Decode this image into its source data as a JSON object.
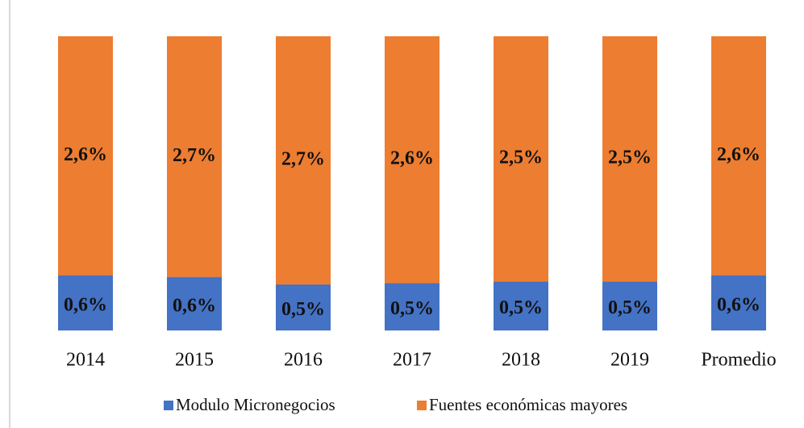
{
  "chart_data": {
    "type": "bar",
    "stacked": "percent",
    "categories": [
      "2014",
      "2015",
      "2016",
      "2017",
      "2018",
      "2019",
      "Promedio"
    ],
    "series": [
      {
        "name": "Modulo Micronegocios",
        "color": "#4472c4",
        "values": [
          0.6,
          0.6,
          0.5,
          0.5,
          0.5,
          0.5,
          0.6
        ],
        "value_labels": [
          "0,6%",
          "0,6%",
          "0,5%",
          "0,5%",
          "0,5%",
          "0,5%",
          "0,6%"
        ]
      },
      {
        "name": "Fuentes económicas mayores",
        "color": "#ed7d31",
        "values": [
          2.6,
          2.7,
          2.7,
          2.6,
          2.5,
          2.5,
          2.6
        ],
        "value_labels": [
          "2,6%",
          "2,7%",
          "2,7%",
          "2,6%",
          "2,5%",
          "2,5%",
          "2,6%"
        ]
      }
    ],
    "legend": "bottom"
  }
}
